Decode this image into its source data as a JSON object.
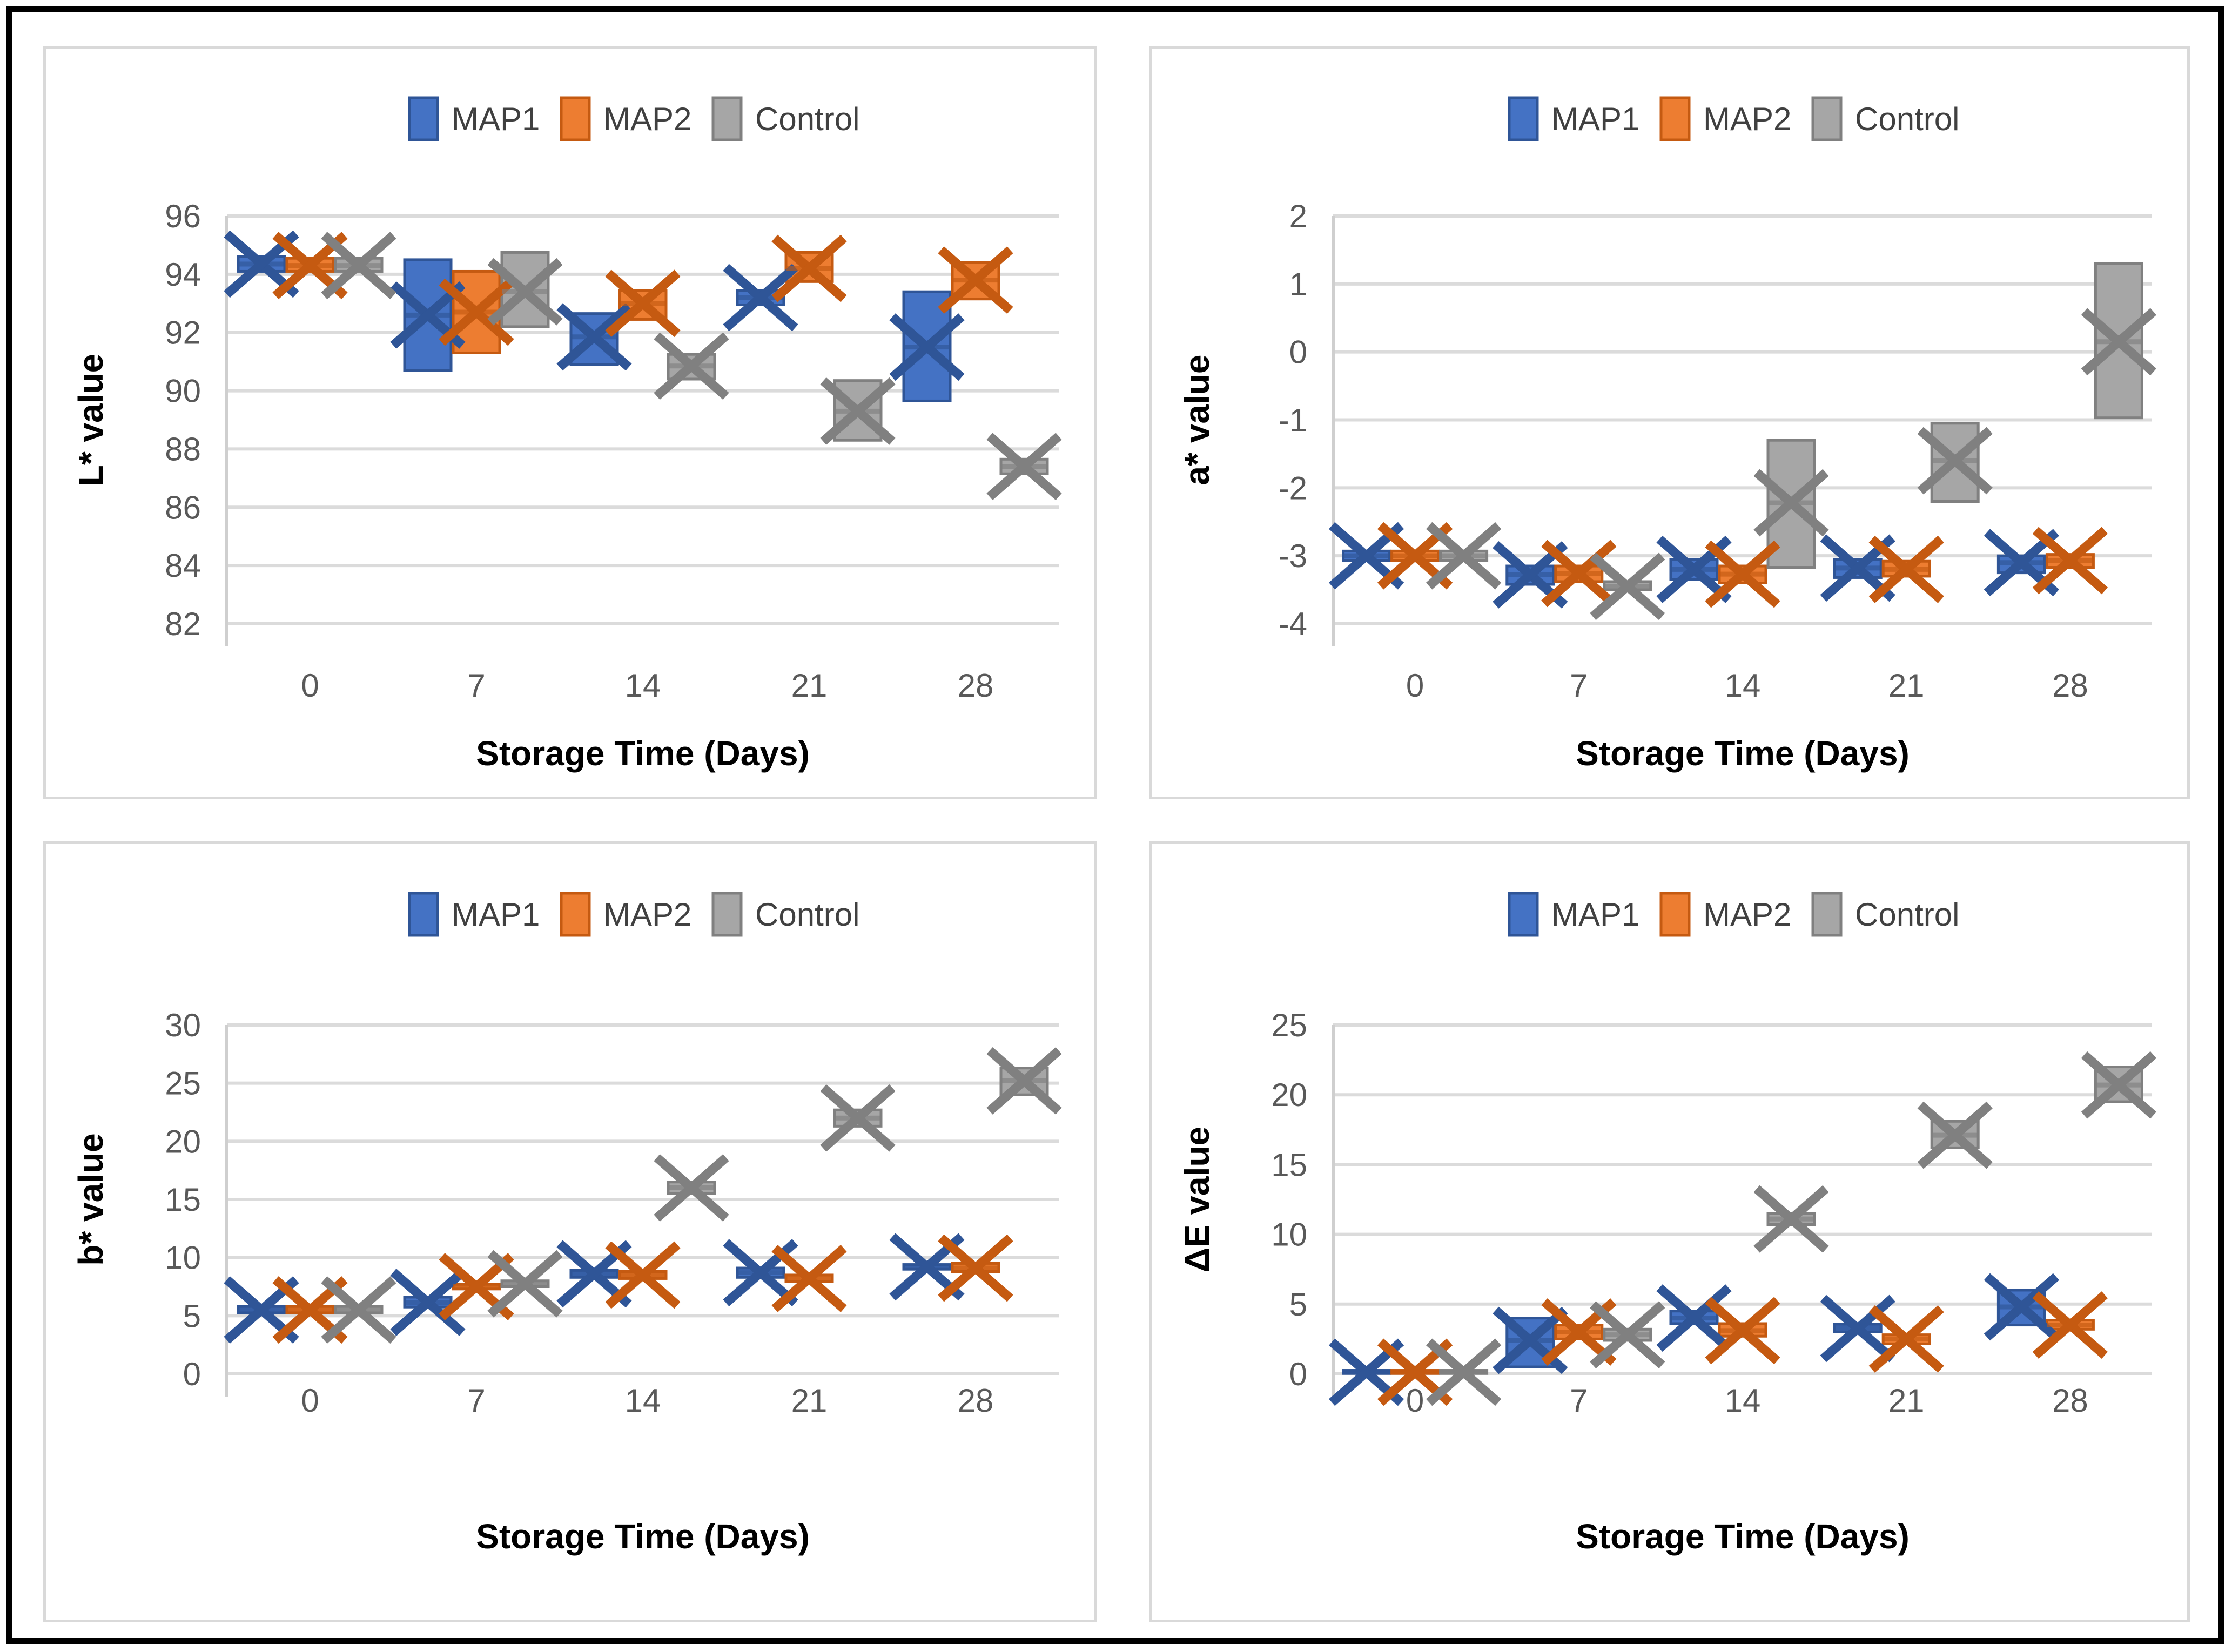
{
  "figure": {
    "legend_labels": [
      "MAP1",
      "MAP2",
      "Control"
    ],
    "series_colors": {
      "MAP1": "#4472C4",
      "MAP2": "#ED7D31",
      "Control": "#A6A6A6"
    },
    "series_marker_colors": {
      "MAP1": "#2F5597",
      "MAP2": "#C55A11",
      "Control": "#808080"
    },
    "gridline_color": "#DBDBDB",
    "axis_line_color": "#CFCFCF",
    "tick_label_color": "#595959",
    "legend_text_color": "#404040",
    "x_axis_title": "Storage Time (Days)"
  },
  "chart_data": [
    {
      "type": "box",
      "title": "",
      "ylabel": "L* value",
      "xlabel": "Storage Time (Days)",
      "ylim": [
        82,
        96
      ],
      "ytick_step": 2,
      "categories": [
        "0",
        "7",
        "14",
        "21",
        "28"
      ],
      "legend_position": "top",
      "grid": true,
      "box_format": [
        "low",
        "high",
        "mean"
      ],
      "series": [
        {
          "name": "MAP1",
          "color": "#4472C4",
          "marker_color": "#2F5597",
          "boxes": [
            [
              94.1,
              94.6,
              94.35
            ],
            [
              90.7,
              94.5,
              92.6
            ],
            [
              90.9,
              92.65,
              91.85
            ],
            [
              92.95,
              93.45,
              93.2
            ],
            [
              89.65,
              93.4,
              91.5
            ]
          ]
        },
        {
          "name": "MAP2",
          "color": "#ED7D31",
          "marker_color": "#C55A11",
          "boxes": [
            [
              94.1,
              94.55,
              94.3
            ],
            [
              91.3,
              94.1,
              92.7
            ],
            [
              92.45,
              93.45,
              93.0
            ],
            [
              93.75,
              94.75,
              94.2
            ],
            [
              93.15,
              94.4,
              93.8
            ]
          ]
        },
        {
          "name": "Control",
          "color": "#A6A6A6",
          "marker_color": "#808080",
          "boxes": [
            [
              94.1,
              94.55,
              94.3
            ],
            [
              92.2,
              94.75,
              93.4
            ],
            [
              90.4,
              91.25,
              90.85
            ],
            [
              88.3,
              90.35,
              89.3
            ],
            [
              87.15,
              87.65,
              87.4
            ]
          ]
        }
      ]
    },
    {
      "type": "box",
      "title": "",
      "ylabel": "a* value",
      "xlabel": "Storage Time (Days)",
      "ylim": [
        -4,
        2
      ],
      "ytick_step": 1,
      "categories": [
        "0",
        "7",
        "14",
        "21",
        "28"
      ],
      "legend_position": "top",
      "grid": true,
      "box_format": [
        "low",
        "high",
        "mean"
      ],
      "series": [
        {
          "name": "MAP1",
          "color": "#4472C4",
          "marker_color": "#2F5597",
          "boxes": [
            [
              -3.07,
              -2.93,
              -3.0
            ],
            [
              -3.42,
              -3.15,
              -3.28
            ],
            [
              -3.35,
              -3.05,
              -3.2
            ],
            [
              -3.32,
              -3.05,
              -3.18
            ],
            [
              -3.25,
              -3.0,
              -3.1
            ]
          ]
        },
        {
          "name": "MAP2",
          "color": "#ED7D31",
          "marker_color": "#C55A11",
          "boxes": [
            [
              -3.07,
              -2.93,
              -3.0
            ],
            [
              -3.38,
              -3.15,
              -3.26
            ],
            [
              -3.4,
              -3.15,
              -3.27
            ],
            [
              -3.3,
              -3.08,
              -3.2
            ],
            [
              -3.17,
              -2.98,
              -3.07
            ]
          ]
        },
        {
          "name": "Control",
          "color": "#A6A6A6",
          "marker_color": "#808080",
          "boxes": [
            [
              -3.07,
              -2.93,
              -3.0
            ],
            [
              -3.5,
              -3.38,
              -3.45
            ],
            [
              -3.17,
              -1.3,
              -2.22
            ],
            [
              -2.2,
              -1.05,
              -1.6
            ],
            [
              -0.97,
              1.3,
              0.15
            ]
          ]
        }
      ]
    },
    {
      "type": "box",
      "title": "",
      "ylabel": "b* value",
      "xlabel": "Storage Time (Days)",
      "ylim": [
        0,
        30
      ],
      "ytick_step": 5,
      "categories": [
        "0",
        "7",
        "14",
        "21",
        "28"
      ],
      "legend_position": "top",
      "grid": true,
      "box_format": [
        "low",
        "high",
        "mean"
      ],
      "series": [
        {
          "name": "MAP1",
          "color": "#4472C4",
          "marker_color": "#2F5597",
          "boxes": [
            [
              5.25,
              5.8,
              5.5
            ],
            [
              5.75,
              6.6,
              6.15
            ],
            [
              8.3,
              8.9,
              8.6
            ],
            [
              8.3,
              9.1,
              8.7
            ],
            [
              9.0,
              9.4,
              9.2
            ]
          ]
        },
        {
          "name": "MAP2",
          "color": "#ED7D31",
          "marker_color": "#C55A11",
          "boxes": [
            [
              5.25,
              5.8,
              5.5
            ],
            [
              7.3,
              7.7,
              7.5
            ],
            [
              8.2,
              8.8,
              8.5
            ],
            [
              7.95,
              8.5,
              8.2
            ],
            [
              8.8,
              9.5,
              9.1
            ]
          ]
        },
        {
          "name": "Control",
          "color": "#A6A6A6",
          "marker_color": "#808080",
          "boxes": [
            [
              5.25,
              5.8,
              5.5
            ],
            [
              7.5,
              8.0,
              7.75
            ],
            [
              15.5,
              16.5,
              16.0
            ],
            [
              21.3,
              22.7,
              22.0
            ],
            [
              24.0,
              26.3,
              25.2
            ]
          ]
        }
      ]
    },
    {
      "type": "box",
      "title": "",
      "ylabel": "ΔE value",
      "xlabel": "Storage Time (Days)",
      "ylim": [
        0,
        25
      ],
      "ytick_step": 5,
      "categories": [
        "0",
        "7",
        "14",
        "21",
        "28"
      ],
      "legend_position": "top",
      "grid": true,
      "box_format": [
        "low",
        "high",
        "mean"
      ],
      "series": [
        {
          "name": "MAP1",
          "color": "#4472C4",
          "marker_color": "#2F5597",
          "boxes": [
            [
              0.03,
              0.25,
              0.12
            ],
            [
              0.5,
              4.0,
              2.4
            ],
            [
              3.6,
              4.5,
              4.0
            ],
            [
              3.0,
              3.55,
              3.25
            ],
            [
              3.5,
              6.0,
              4.8
            ]
          ]
        },
        {
          "name": "MAP2",
          "color": "#ED7D31",
          "marker_color": "#C55A11",
          "boxes": [
            [
              0.03,
              0.25,
              0.12
            ],
            [
              2.5,
              3.5,
              3.0
            ],
            [
              2.7,
              3.6,
              3.1
            ],
            [
              2.15,
              2.8,
              2.5
            ],
            [
              3.2,
              3.85,
              3.5
            ]
          ]
        },
        {
          "name": "Control",
          "color": "#A6A6A6",
          "marker_color": "#808080",
          "boxes": [
            [
              0.03,
              0.25,
              0.12
            ],
            [
              2.4,
              3.2,
              2.8
            ],
            [
              10.7,
              11.5,
              11.1
            ],
            [
              16.2,
              18.1,
              17.1
            ],
            [
              19.5,
              22.0,
              20.7
            ]
          ]
        }
      ]
    }
  ]
}
